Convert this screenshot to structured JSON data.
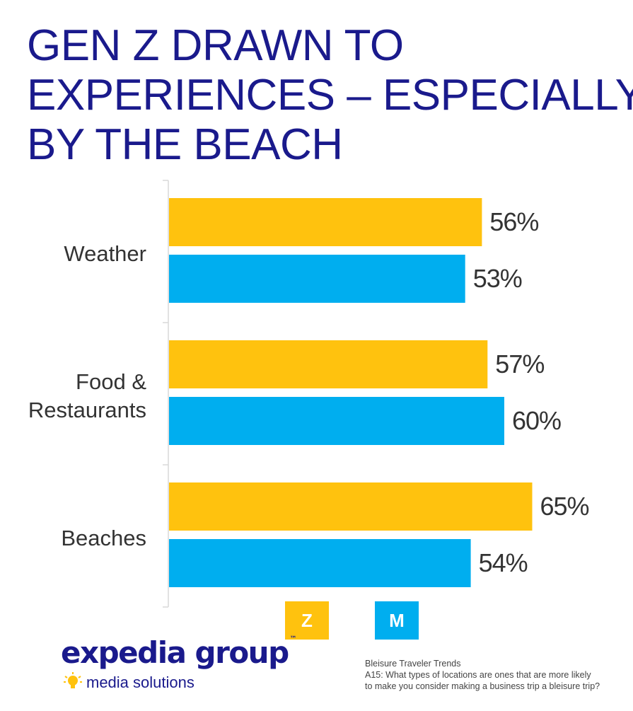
{
  "title_lines": [
    "GEN Z DRAWN TO",
    "EXPERIENCES – ESPECIALLY",
    "BY THE BEACH"
  ],
  "colors": {
    "title": "#1a1a8c",
    "series_z": "#FFC20E",
    "series_m": "#00AEEF",
    "axis": "#d9d9d9",
    "label": "#333333"
  },
  "chart_data": {
    "type": "bar",
    "orientation": "horizontal",
    "categories": [
      "Weather",
      "Food & Restaurants",
      "Beaches"
    ],
    "category_lines": [
      [
        "Weather"
      ],
      [
        "Food &",
        "Restaurants"
      ],
      [
        "Beaches"
      ]
    ],
    "series": [
      {
        "name": "Z",
        "values": [
          56,
          57,
          65
        ],
        "labels": [
          "56%",
          "57%",
          "65%"
        ]
      },
      {
        "name": "M",
        "values": [
          53,
          60,
          54
        ],
        "labels": [
          "53%",
          "60%",
          "54%"
        ]
      }
    ],
    "xlim": [
      0,
      100
    ],
    "grid": false,
    "legend": "bottom"
  },
  "legend": {
    "z_label": "Z",
    "m_label": "M"
  },
  "logo": {
    "name": "expedia group",
    "tm": "™",
    "subtitle": "media solutions"
  },
  "source": {
    "line1": "Bleisure Traveler Trends",
    "line2": "A15: What types of locations are ones that are more likely",
    "line3": "to make you consider making a business trip a bleisure trip?"
  }
}
